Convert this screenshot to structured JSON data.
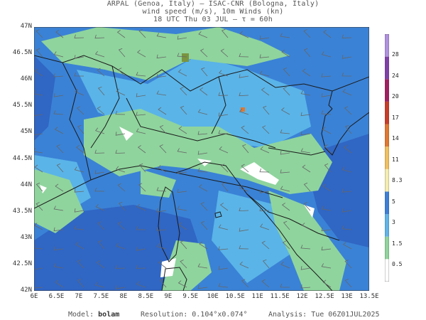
{
  "header": {
    "line1": "ARPAL (Genoa, Italy)  —  ISAC-CNR (Bologna, Italy)",
    "line2": "wind speed (m/s), 10m Winds (kn)",
    "line3": "18 UTC Thu 03 JUL  —  τ = 60h"
  },
  "axes": {
    "lat_labels": [
      "47N",
      "46.5N",
      "46N",
      "45.5N",
      "45N",
      "44.5N",
      "44N",
      "43.5N",
      "43N",
      "42.5N",
      "42N"
    ],
    "lon_labels": [
      "6E",
      "6.5E",
      "7E",
      "7.5E",
      "8E",
      "8.5E",
      "9E",
      "9.5E",
      "10E",
      "10.5E",
      "11E",
      "11.5E",
      "12E",
      "12.5E",
      "13E",
      "13.5E"
    ]
  },
  "colorbar": {
    "labels": [
      "28",
      "24",
      "20",
      "17",
      "14",
      "11",
      "8.3",
      "5",
      "3",
      "1.5",
      "0.5"
    ],
    "colors": [
      "#ffffff",
      "#8fd49d",
      "#60b4e8",
      "#3d7fd8",
      "#f4edb0",
      "#f0c060",
      "#e07830",
      "#c83c28",
      "#a02060",
      "#8040a8",
      "#b090e0"
    ]
  },
  "footer": {
    "model_label": "Model:",
    "model": "bolam",
    "resolution_label": "Resolution:",
    "resolution": "0.104°x0.074°",
    "analysis_label": "Analysis:",
    "analysis": "Tue 06Z01JUL2025"
  },
  "map_colors": {
    "sea_base": "#3a82d6",
    "strong": "#3066c4",
    "moderate": "#5ab4e8",
    "light": "#8fd49d",
    "calm": "#ffffff",
    "borders": "#1a1a1a",
    "barbs": "#666666"
  }
}
